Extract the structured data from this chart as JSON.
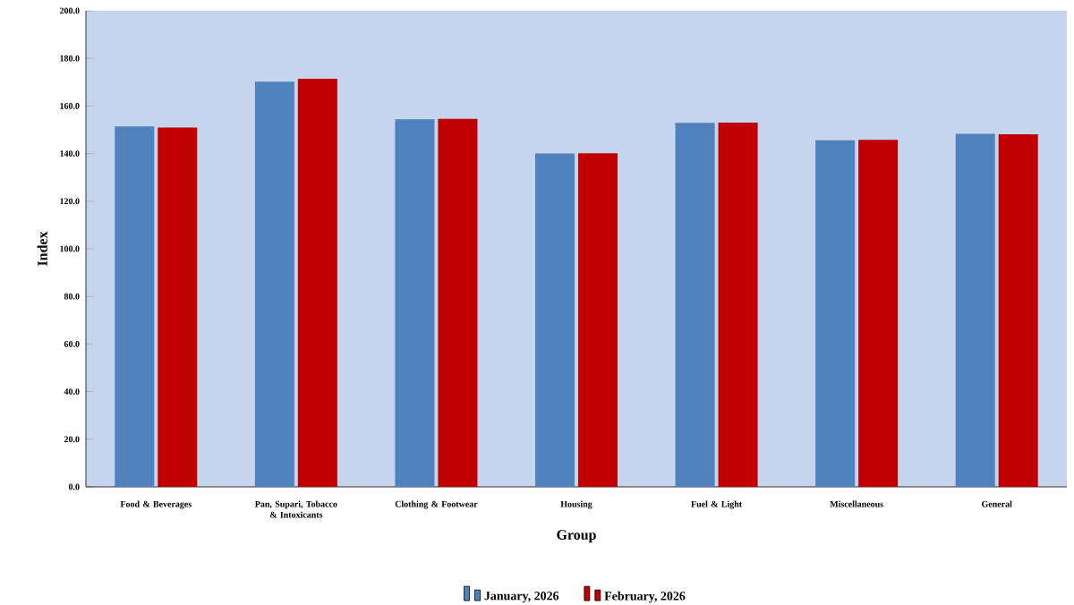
{
  "chart_data": {
    "type": "bar",
    "xlabel": "Group",
    "ylabel": "Index",
    "categories": [
      "Food & Beverages",
      "Pan, Supari, Tobacco & Intoxicants",
      "Clothing & Footwear",
      "Housing",
      "Fuel & Light",
      "Miscellaneous",
      "General"
    ],
    "series": [
      {
        "name": "January, 2026",
        "color": "#4f81bd",
        "values": [
          151.4,
          170.2,
          154.4,
          140.0,
          152.9,
          145.6,
          148.3
        ]
      },
      {
        "name": "February, 2026",
        "color": "#c00000",
        "values": [
          150.9,
          171.4,
          154.6,
          140.1,
          153.0,
          145.8,
          148.1
        ]
      }
    ],
    "ylim": [
      0,
      200
    ],
    "yticks": [
      {
        "value": 0,
        "label": "0.0"
      },
      {
        "value": 20,
        "label": "20.0"
      },
      {
        "value": 40,
        "label": "40.0"
      },
      {
        "value": 60,
        "label": "60.0"
      },
      {
        "value": 80,
        "label": "80.0"
      },
      {
        "value": 100,
        "label": "100.0"
      },
      {
        "value": 120,
        "label": "120.0"
      },
      {
        "value": 140,
        "label": "140.0"
      },
      {
        "value": 160,
        "label": "160.0"
      },
      {
        "value": 180,
        "label": "180.0"
      },
      {
        "value": 200,
        "label": "200.0"
      }
    ],
    "legend": "bottom",
    "grid": false
  }
}
